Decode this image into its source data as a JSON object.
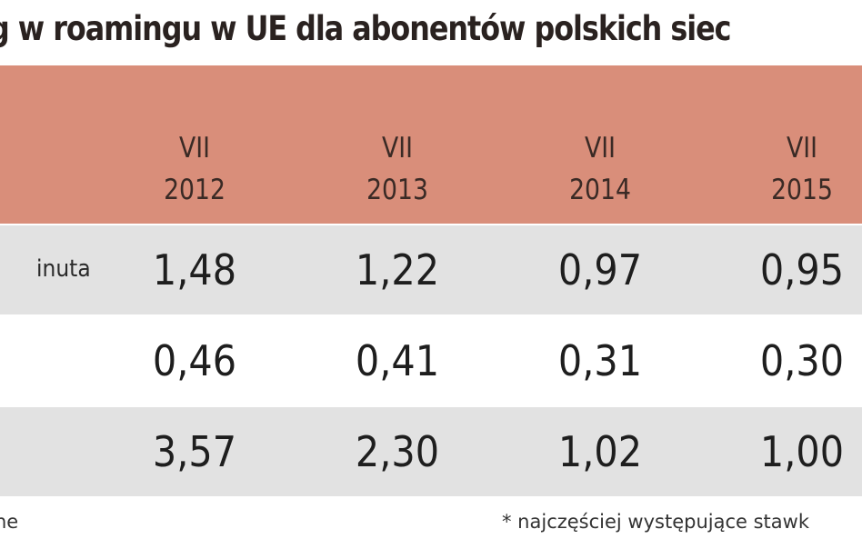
{
  "title": "g w roamingu w UE dla abonentów polskich siec",
  "columns": [
    {
      "month": "VII",
      "year": "2012"
    },
    {
      "month": "VII",
      "year": "2013"
    },
    {
      "month": "VII",
      "year": "2014"
    },
    {
      "month": "VII",
      "year": "2015"
    }
  ],
  "rows": [
    {
      "label": "inuta",
      "values": [
        "1,48",
        "1,22",
        "0,97",
        "0,95"
      ]
    },
    {
      "label": "",
      "values": [
        "0,46",
        "0,41",
        "0,31",
        "0,30"
      ]
    },
    {
      "label": "",
      "values": [
        "3,57",
        "2,30",
        "1,02",
        "1,00"
      ]
    }
  ],
  "footer": {
    "left": "ne",
    "right": "* najczęściej występujące stawk"
  },
  "colors": {
    "header_band": "#d98e7a",
    "row_shaded": "#e2e2e2",
    "row_white": "#ffffff"
  }
}
